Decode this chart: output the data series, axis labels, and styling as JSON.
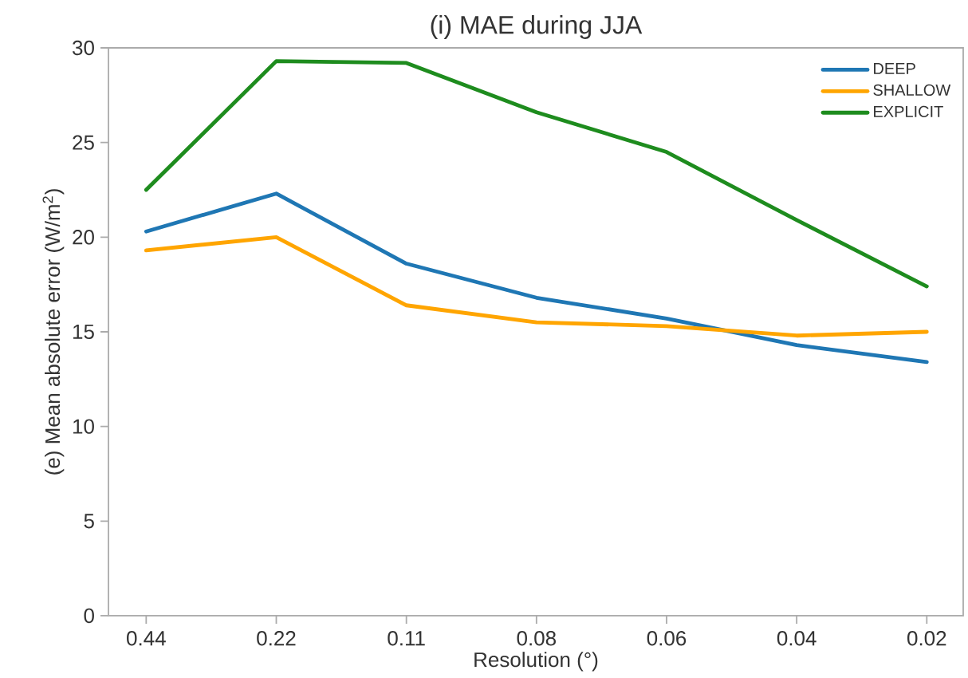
{
  "chart_data": {
    "type": "line",
    "title": "(i) MAE during JJA",
    "xlabel": "Resolution (°)",
    "ylabel": "(e) Mean absolute error (W/m$^{2}$)",
    "categories": [
      "0.44",
      "0.22",
      "0.11",
      "0.08",
      "0.06",
      "0.04",
      "0.02"
    ],
    "series": [
      {
        "name": "DEEP",
        "color": "#1f77b4",
        "values": [
          20.3,
          22.3,
          18.6,
          16.8,
          15.7,
          14.3,
          13.4
        ]
      },
      {
        "name": "SHALLOW",
        "color": "#ffa500",
        "values": [
          19.3,
          20.0,
          16.4,
          15.5,
          15.3,
          14.8,
          15.0
        ]
      },
      {
        "name": "EXPLICIT",
        "color": "#1e8c1e",
        "values": [
          22.5,
          29.3,
          29.2,
          26.6,
          24.5,
          20.9,
          17.4
        ]
      }
    ],
    "ylim": [
      0,
      30
    ],
    "yticks": [
      0,
      5,
      10,
      15,
      20,
      25,
      30
    ],
    "legend": "top right"
  }
}
